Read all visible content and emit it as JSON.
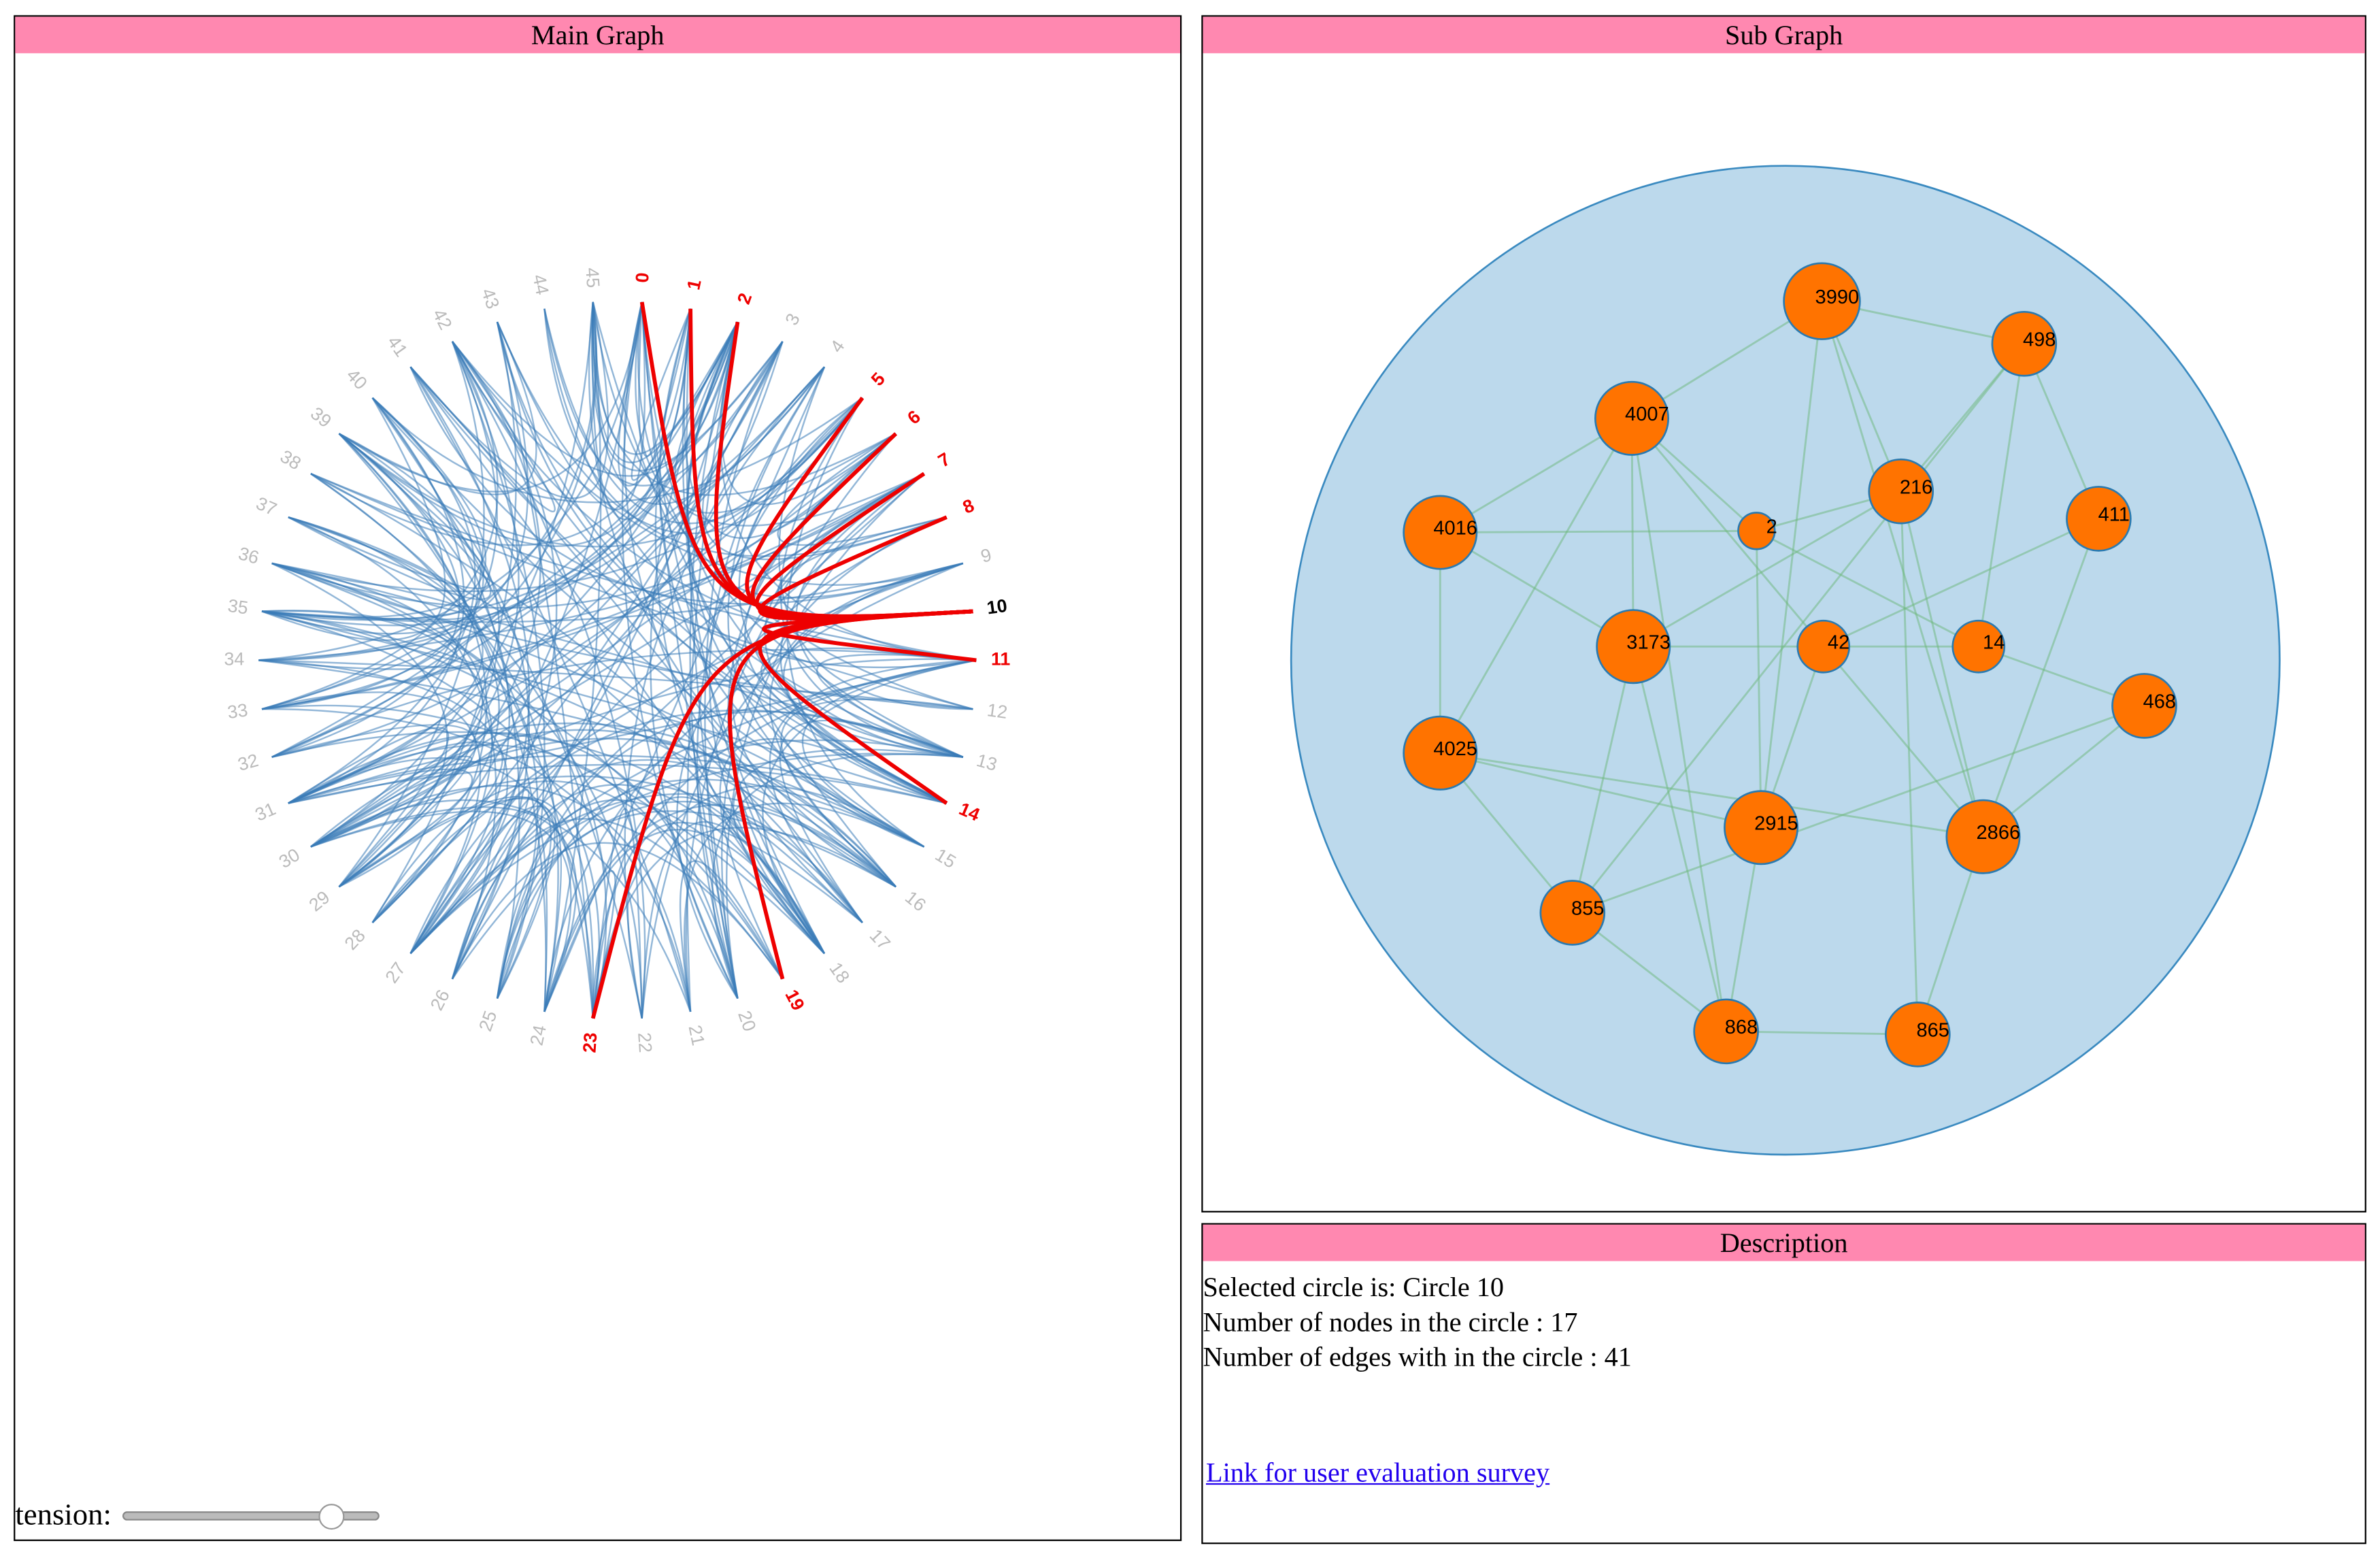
{
  "main_graph": {
    "title": "Main Graph",
    "labels": [
      "0",
      "1",
      "2",
      "3",
      "4",
      "5",
      "6",
      "7",
      "8",
      "9",
      "10",
      "11",
      "12",
      "13",
      "14",
      "15",
      "16",
      "17",
      "18",
      "19",
      "20",
      "21",
      "22",
      "23",
      "24",
      "25",
      "26",
      "27",
      "28",
      "29",
      "30",
      "31",
      "32",
      "33",
      "34",
      "35",
      "36",
      "37",
      "38",
      "39",
      "40",
      "41",
      "42",
      "43",
      "44",
      "45"
    ],
    "highlighted": [
      0,
      1,
      2,
      5,
      6,
      7,
      8,
      11,
      14,
      19,
      23
    ],
    "selected": 10,
    "tension_label": "tension:"
  },
  "sub_graph": {
    "title": "Sub Graph",
    "nodes": [
      "3990",
      "498",
      "4007",
      "216",
      "411",
      "4016",
      "2",
      "3173",
      "42",
      "14",
      "468",
      "4025",
      "2915",
      "2866",
      "855",
      "868",
      "865"
    ]
  },
  "description": {
    "title": "Description",
    "lines": [
      "Selected circle is: Circle 10",
      "Number of nodes in the circle : 17",
      "Number of edges with in the circle : 41"
    ],
    "link": "Link for user evaluation survey"
  }
}
